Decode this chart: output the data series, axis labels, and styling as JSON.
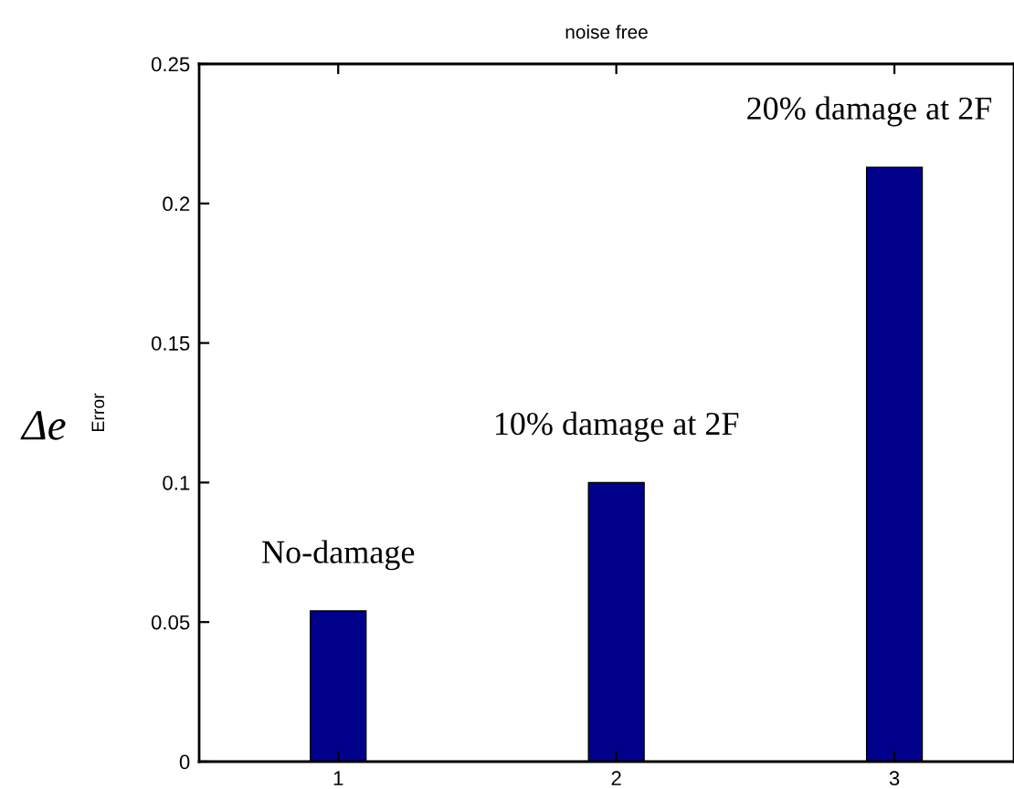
{
  "chart_data": {
    "type": "bar",
    "title": "noise free",
    "ylabel": "Error",
    "x": [
      1,
      2,
      3
    ],
    "values": [
      0.054,
      0.1,
      0.213
    ],
    "color": "#00008b",
    "xlim": [
      0.5,
      3.43
    ],
    "xticks": [
      1,
      2,
      3
    ],
    "ylim": [
      0,
      0.25
    ],
    "yticks": [
      0,
      0.05,
      0.1,
      0.15,
      0.2,
      0.25
    ],
    "grid": false,
    "annotations": [
      "Δe",
      {
        "text": "No-damage",
        "x": 1,
        "y": 0.054
      },
      {
        "text": "10% damage at 2F",
        "x": 2,
        "y": 0.1
      },
      {
        "text": "20% damage at 2F",
        "x": 3,
        "y": 0.213
      }
    ]
  }
}
